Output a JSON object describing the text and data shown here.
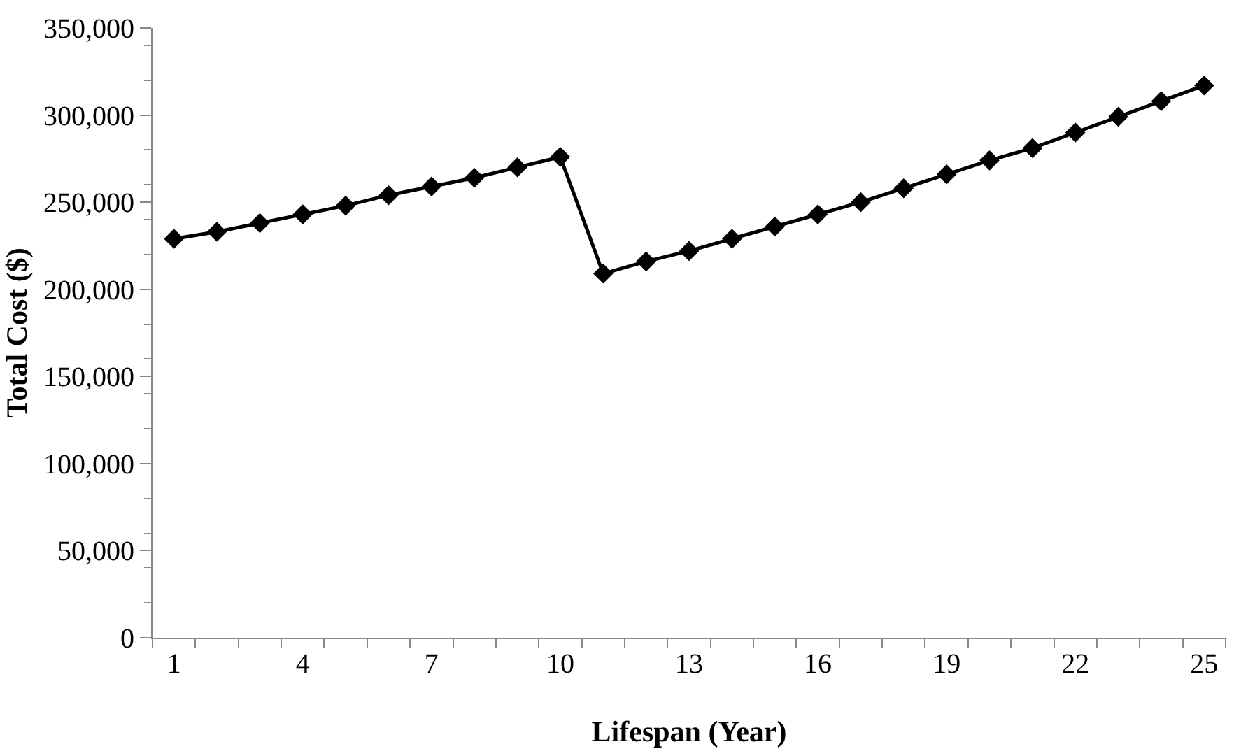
{
  "chart_data": {
    "type": "line",
    "xlabel": "Lifespan (Year)",
    "ylabel": "Total Cost ($)",
    "x": [
      1,
      2,
      3,
      4,
      5,
      6,
      7,
      8,
      9,
      10,
      11,
      12,
      13,
      14,
      15,
      16,
      17,
      18,
      19,
      20,
      21,
      22,
      23,
      24,
      25
    ],
    "series": [
      {
        "color": "#000000",
        "values": [
          229000,
          233000,
          238000,
          243000,
          248000,
          254000,
          259000,
          264000,
          270000,
          276000,
          209000,
          216000,
          222000,
          229000,
          236000,
          243000,
          250000,
          258000,
          266000,
          274000,
          281000,
          290000,
          299000,
          308000,
          317000
        ]
      }
    ],
    "xlim": [
      0.5,
      25.5
    ],
    "xticks": [
      1,
      4,
      7,
      10,
      13,
      16,
      19,
      22,
      25
    ],
    "ylim": [
      0,
      350000
    ],
    "yticks": [
      {
        "value": 0,
        "label": "0"
      },
      {
        "value": 50000,
        "label": "50,000"
      },
      {
        "value": 100000,
        "label": "100,000"
      },
      {
        "value": 150000,
        "label": "150,000"
      },
      {
        "value": 200000,
        "label": "200,000"
      },
      {
        "value": 250000,
        "label": "250,000"
      },
      {
        "value": 300000,
        "label": "300,000"
      },
      {
        "value": 350000,
        "label": "350,000"
      }
    ],
    "marker": "diamond",
    "line_style": "solid"
  }
}
